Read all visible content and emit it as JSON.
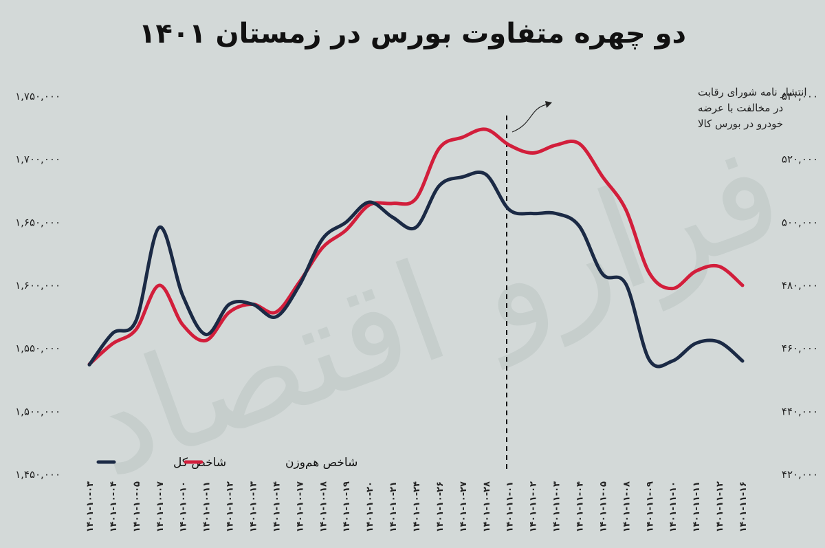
{
  "chart_data": {
    "type": "line",
    "title": "دو چهره متفاوت بورس در زمستان ۱۴۰۱",
    "x": [
      "۱۴۰۱-۱۰-۰۳",
      "۱۴۰۱-۱۰-۰۴",
      "۱۴۰۱-۱۰-۰۵",
      "۱۴۰۱-۱۰-۰۷",
      "۱۴۰۱-۱۰-۱۰",
      "۱۴۰۱-۱۰-۱۱",
      "۱۴۰۱-۱۰-۱۲",
      "۱۴۰۱-۱۰-۱۳",
      "۱۴۰۱-۱۰-۱۴",
      "۱۴۰۱-۱۰-۱۷",
      "۱۴۰۱-۱۰-۱۸",
      "۱۴۰۱-۱۰-۱۹",
      "۱۴۰۱-۱۰-۲۰",
      "۱۴۰۱-۱۰-۲۱",
      "۱۴۰۱-۱۰-۲۴",
      "۱۴۰۱-۱۰-۲۶",
      "۱۴۰۱-۱۰-۲۷",
      "۱۴۰۱-۱۰-۲۸",
      "۱۴۰۱-۱۱-۰۱",
      "۱۴۰۱-۱۱-۰۲",
      "۱۴۰۱-۱۱-۰۳",
      "۱۴۰۱-۱۱-۰۴",
      "۱۴۰۱-۱۱-۰۵",
      "۱۴۰۱-۱۱-۰۸",
      "۱۴۰۱-۱۱-۰۹",
      "۱۴۰۱-۱۱-۱۰",
      "۱۴۰۱-۱۱-۱۱",
      "۱۴۰۱-۱۱-۱۲",
      "۱۴۰۱-۱۱-۱۶"
    ],
    "y_left_ticks": [
      "۱,۷۵۰,۰۰۰",
      "۱,۷۰۰,۰۰۰",
      "۱,۶۵۰,۰۰۰",
      "۱,۶۰۰,۰۰۰",
      "۱,۵۵۰,۰۰۰",
      "۱,۵۰۰,۰۰۰",
      "۱,۴۵۰,۰۰۰"
    ],
    "y_right_ticks": [
      "۵۴۰,۰۰۰",
      "۵۲۰,۰۰۰",
      "۵۰۰,۰۰۰",
      "۴۸۰,۰۰۰",
      "۴۶۰,۰۰۰",
      "۴۴۰,۰۰۰",
      "۴۲۰,۰۰۰"
    ],
    "ylim_left": [
      1450000,
      1750000
    ],
    "ylim_right": [
      420000,
      540000
    ],
    "series": [
      {
        "name": "شاخص کل",
        "axis": "left",
        "color": "#1b2a45",
        "values": [
          1537000,
          1562000,
          1572000,
          1646000,
          1592000,
          1561000,
          1585000,
          1585000,
          1575000,
          1600000,
          1637000,
          1650000,
          1666000,
          1654000,
          1646000,
          1679000,
          1686000,
          1688000,
          1660000,
          1657000,
          1657000,
          1647000,
          1609000,
          1601000,
          1541000,
          1540000,
          1554000,
          1555000,
          1540000
        ]
      },
      {
        "name": "شاخص هم‌وزن",
        "axis": "right",
        "color": "#d21e3b",
        "values": [
          455000,
          461500,
          466000,
          480000,
          467500,
          462500,
          471500,
          474000,
          471500,
          481000,
          492000,
          497500,
          505500,
          506000,
          507500,
          523500,
          527000,
          529500,
          524500,
          522000,
          524500,
          525000,
          514500,
          504000,
          484000,
          479000,
          484500,
          486000,
          480000
        ]
      }
    ],
    "annotation": {
      "lines": [
        "انتشار نامه شورای رقابت",
        "در مخالفت با عرضه",
        "خودرو در بورس کالا"
      ],
      "at": "۱۴۰۱-۱۱-۰۱"
    },
    "legend_position": "bottom-left",
    "watermark": "فرارو اقتصاد"
  }
}
